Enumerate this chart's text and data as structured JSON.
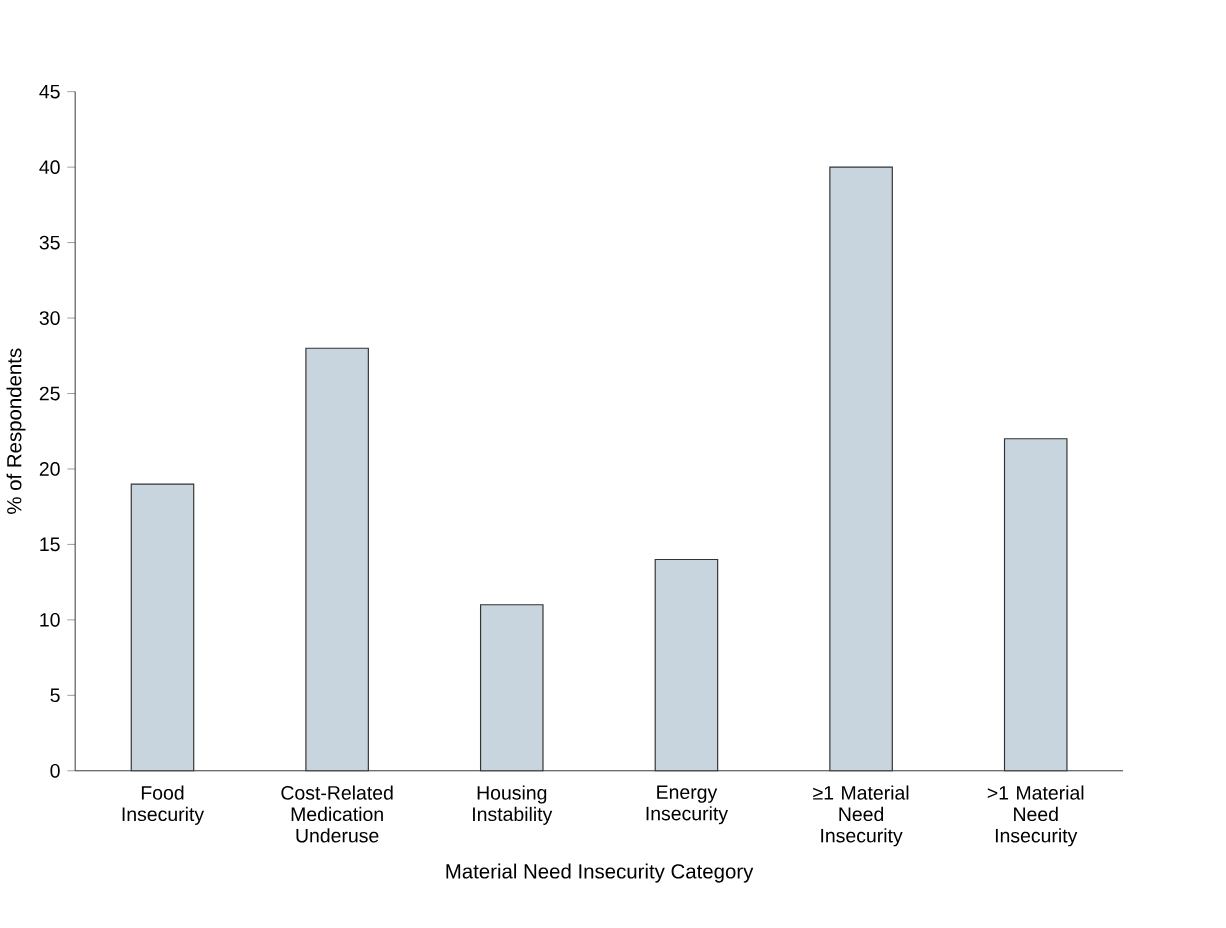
{
  "chart_data": {
    "type": "bar",
    "xlabel": "Material Need Insecurity Category",
    "ylabel": "% of Respondents",
    "categories": [
      "Food Insecurity",
      "Cost-Related Medication Underuse",
      "Housing Instability",
      "Energy Insecurity",
      "≥1 Material Need Insecurity",
      ">1 Material Need Insecurity"
    ],
    "values": [
      19,
      28,
      11,
      14,
      40,
      22
    ],
    "color": "#c9d5de",
    "ylim": [
      0,
      45
    ],
    "yticks": [
      0,
      5,
      10,
      15,
      20,
      25,
      30,
      35,
      40,
      45
    ]
  }
}
